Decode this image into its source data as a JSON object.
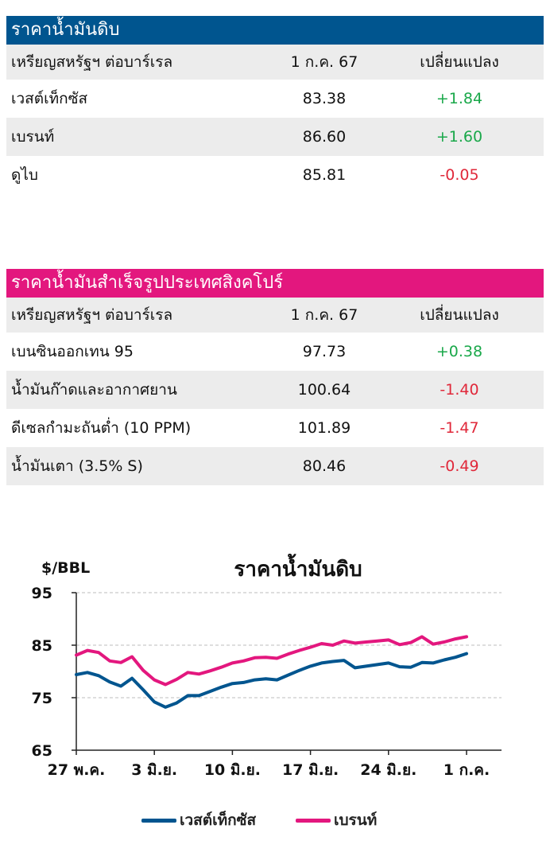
{
  "crude": {
    "title": "ราคาน้ำมันดิบ",
    "header": {
      "label": "เหรียญสหรัฐฯ ต่อบาร์เรล",
      "date": "1 ก.ค. 67",
      "change": "เปลี่ยนแปลง"
    },
    "rows": [
      {
        "name": "เวสต์เท็กซัส",
        "price": "83.38",
        "change": "+1.84"
      },
      {
        "name": "เบรนท์",
        "price": "86.60",
        "change": "+1.60"
      },
      {
        "name": "ดูไบ",
        "price": "85.81",
        "change": "-0.05"
      }
    ]
  },
  "singapore": {
    "title": "ราคาน้ำมันสำเร็จรูปประเทศสิงคโปร์",
    "header": {
      "label": "เหรียญสหรัฐฯ ต่อบาร์เรล",
      "date": "1 ก.ค. 67",
      "change": "เปลี่ยนแปลง"
    },
    "rows": [
      {
        "name": "เบนซินออกเทน 95",
        "price": "97.73",
        "change": "+0.38"
      },
      {
        "name": "น้ำมันก๊าดและอากาศยาน",
        "price": "100.64",
        "change": "-1.40"
      },
      {
        "name": "ดีเซลกำมะถันต่ำ (10 PPM)",
        "price": "101.89",
        "change": "-1.47"
      },
      {
        "name": "น้ำมันเตา (3.5% S)",
        "price": "80.46",
        "change": "-0.49"
      }
    ]
  },
  "colors": {
    "blue": "#00558f",
    "pink": "#e3177e",
    "positive": "#1aa84a",
    "negative": "#e0283a"
  },
  "chart_data": {
    "type": "line",
    "title": "ราคาน้ำมันดิบ",
    "ylabel": "$/BBL",
    "ylim": [
      65,
      95
    ],
    "yticks": [
      65,
      75,
      85,
      95
    ],
    "x_tick_labels": [
      "27 พ.ค.",
      "3 มิ.ย.",
      "10 มิ.ย.",
      "17 มิ.ย.",
      "24 มิ.ย.",
      "1 ก.ค."
    ],
    "grid": "horizontal dashed",
    "legend_position": "bottom",
    "series": [
      {
        "name": "เวสต์เท็กซัส",
        "color": "#00558f",
        "values": [
          79.4,
          79.8,
          79.2,
          78.0,
          77.2,
          78.7,
          76.5,
          74.2,
          73.2,
          74.0,
          75.4,
          75.4,
          76.2,
          77.0,
          77.7,
          77.9,
          78.4,
          78.6,
          78.4,
          79.3,
          80.2,
          81.0,
          81.6,
          81.9,
          82.1,
          80.7,
          81.0,
          81.3,
          81.6,
          80.9,
          80.8,
          81.7,
          81.6,
          82.2,
          82.7,
          83.4
        ]
      },
      {
        "name": "เบรนท์",
        "color": "#e3177e",
        "values": [
          83.1,
          84.0,
          83.6,
          82.0,
          81.7,
          82.8,
          80.2,
          78.4,
          77.5,
          78.5,
          79.8,
          79.5,
          80.1,
          80.8,
          81.6,
          82.0,
          82.6,
          82.7,
          82.5,
          83.3,
          84.0,
          84.6,
          85.3,
          85.0,
          85.8,
          85.4,
          85.6,
          85.8,
          86.0,
          85.1,
          85.5,
          86.6,
          85.2,
          85.6,
          86.2,
          86.6
        ]
      }
    ]
  }
}
